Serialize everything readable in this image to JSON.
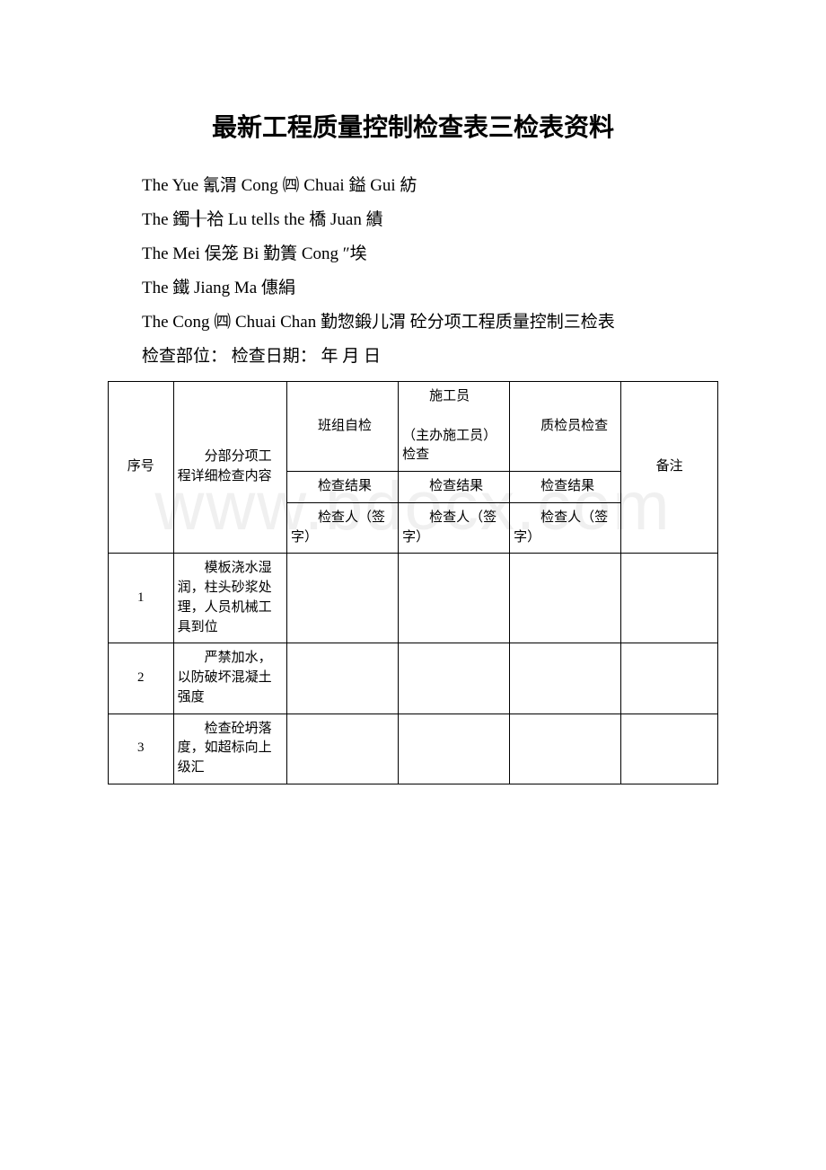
{
  "title": "最新工程质量控制检查表三检表资料",
  "watermark": "www.bdocx.com",
  "paragraphs": [
    "The Yue 氰渭 Cong ㈣ Chuai 鎰 Gui 紡",
    "The 鐲╂祫 Lu tells the 橋 Juan  績",
    "The Mei 俣笼 Bi 勤簀 Cong ″埃",
    "The 鐵  Jiang Ma 僡絹",
    "The Cong ㈣ Chuai Chan 勤惣鍛儿渭 砼分项工程质量控制三检表",
    "检查部位：    检查日期：  年 月 日"
  ],
  "table": {
    "header": {
      "seq": "序号",
      "detail": "分部分项工程详细检查内容",
      "group_top": "班组自检",
      "worker_top": "施工员",
      "worker_note": "（主办施工员）检查",
      "qc_top": "质检员检查",
      "remark": "备注",
      "sub_result": "检查结果",
      "sub_sign": "检查人（签字）"
    },
    "rows": [
      {
        "seq": "1",
        "detail": "模板浇水湿润，柱头砂浆处理，人员机械工具到位"
      },
      {
        "seq": "2",
        "detail": "严禁加水，以防破坏混凝土强度"
      },
      {
        "seq": "3",
        "detail": "检查砼坍落度，如超标向上级汇"
      }
    ]
  },
  "style": {
    "background": "#ffffff",
    "text_color": "#000000",
    "watermark_color": "#f0f0f0",
    "border_color": "#000000"
  }
}
